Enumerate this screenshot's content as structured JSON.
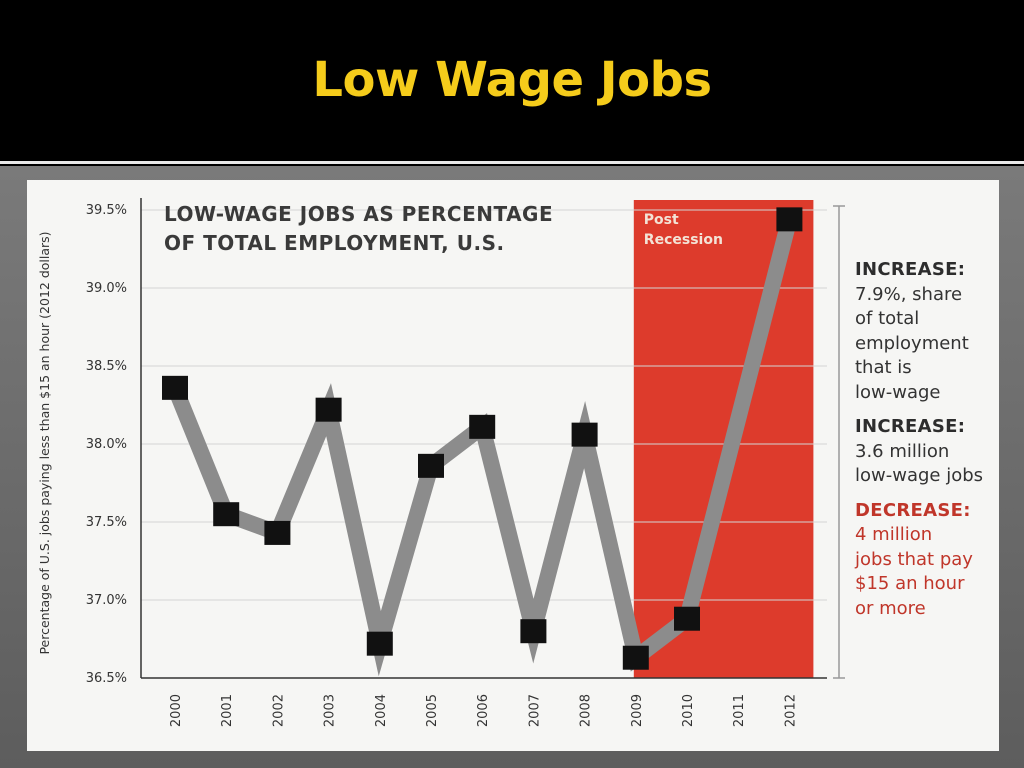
{
  "slide": {
    "title": "Low Wage Jobs"
  },
  "chart_data": {
    "type": "line",
    "title_lines": [
      "LOW-WAGE JOBS AS PERCENTAGE",
      "OF TOTAL EMPLOYMENT, U.S."
    ],
    "ylabel": "Percentage of U.S. jobs paying less than $15 an hour (2012 dollars)",
    "xlabel": "",
    "categories": [
      "2000",
      "2001",
      "2002",
      "2003",
      "2004",
      "2005",
      "2006",
      "2007",
      "2008",
      "2009",
      "2010",
      "2011",
      "2012"
    ],
    "ylim": [
      36.5,
      39.5
    ],
    "y_ticks": [
      {
        "value": 39.5,
        "label": "39.5%"
      },
      {
        "value": 39.0,
        "label": "39.0%"
      },
      {
        "value": 38.5,
        "label": "38.5%"
      },
      {
        "value": 38.0,
        "label": "38.0%"
      },
      {
        "value": 37.5,
        "label": "37.5%"
      },
      {
        "value": 37.0,
        "label": "37.0%"
      },
      {
        "value": 36.5,
        "label": "36.5%"
      }
    ],
    "series": [
      {
        "x": [
          "2000",
          "2001",
          "2002",
          "2003",
          "2004",
          "2005",
          "2006",
          "2007",
          "2008",
          "2009",
          "2010",
          "2012"
        ],
        "values": [
          38.36,
          37.55,
          37.43,
          38.22,
          36.72,
          37.86,
          38.11,
          36.8,
          38.06,
          36.63,
          36.88,
          39.44
        ],
        "line_color": "#8c8c8c",
        "marker_color": "#111111"
      }
    ],
    "grid": true,
    "highlight_band": {
      "label_lines": [
        "Post",
        "Recession"
      ],
      "from": "2009",
      "to": "2012",
      "color": "#dd3b2c"
    },
    "annotations": [
      {
        "head": "INCREASE:",
        "body": "7.9%, share\nof total\nemployment\nthat is\nlow-wage",
        "style": "normal"
      },
      {
        "head": "INCREASE:",
        "body": "3.6 million\nlow-wage jobs",
        "style": "normal"
      },
      {
        "head": "DECREASE:",
        "body": "4 million\njobs that pay\n$15 an hour\nor more",
        "style": "red"
      }
    ]
  }
}
